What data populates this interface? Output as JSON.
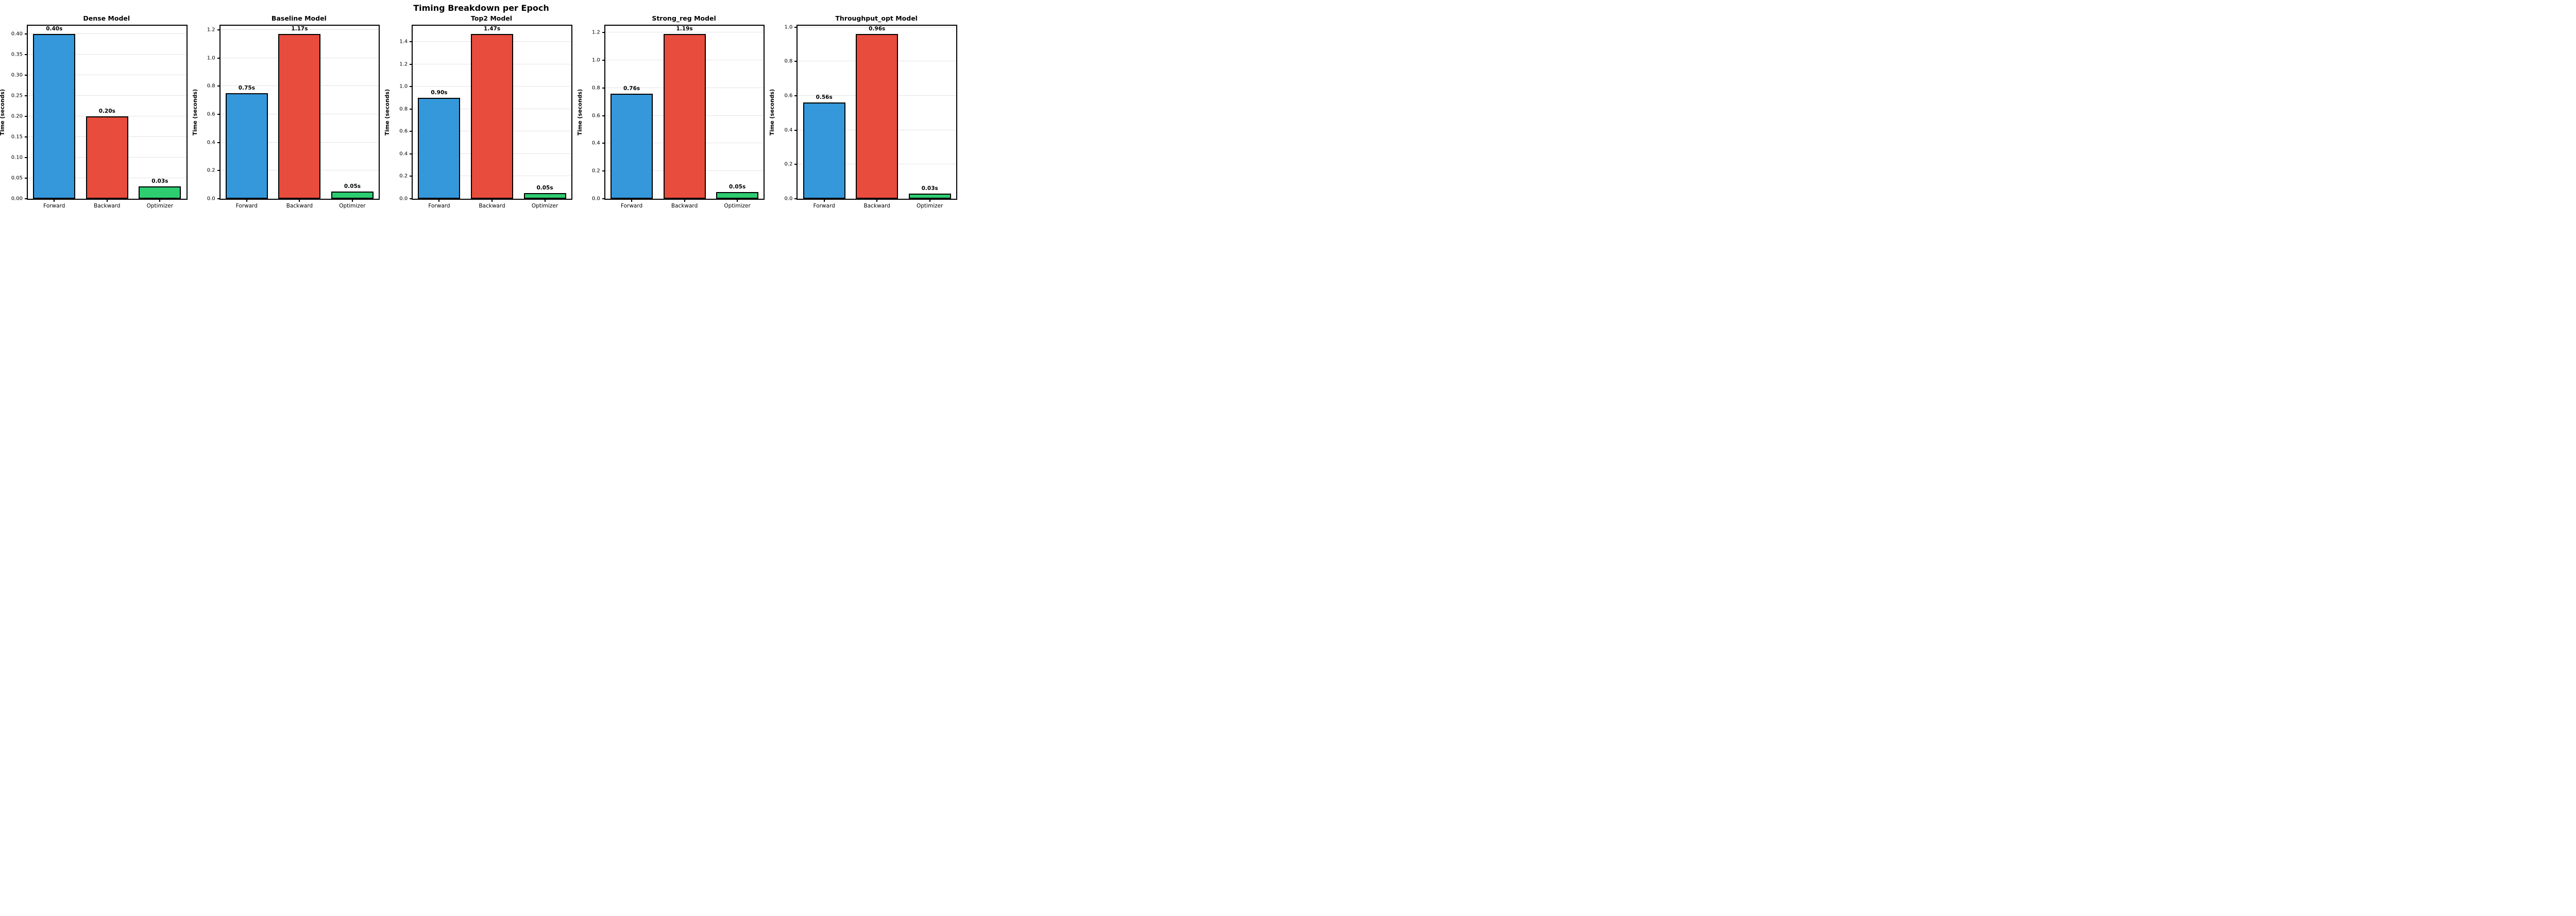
{
  "figure": {
    "title": "Timing Breakdown per Epoch",
    "ylabel": "Time (seconds)",
    "categories": [
      "Forward",
      "Backward",
      "Optimizer"
    ],
    "bar_colors": [
      "#3498db",
      "#e74c3c",
      "#2ecc71"
    ],
    "bar_edge_color": "#000000",
    "grid_color": "#e3e3e3",
    "background_color": "#ffffff"
  },
  "chart_data": [
    {
      "type": "bar",
      "title": "Dense Model",
      "categories": [
        "Forward",
        "Backward",
        "Optimizer"
      ],
      "values": [
        0.4,
        0.2,
        0.03
      ],
      "bar_labels": [
        "0.40s",
        "0.20s",
        "0.03s"
      ],
      "colors": [
        "#3498db",
        "#e74c3c",
        "#2ecc71"
      ],
      "xlabel": "",
      "ylabel": "Time (seconds)",
      "ylim": [
        0,
        0.42
      ],
      "yticks": [
        0.0,
        0.05,
        0.1,
        0.15,
        0.2,
        0.25,
        0.3,
        0.35,
        0.4
      ],
      "ytick_labels": [
        "0.00",
        "0.05",
        "0.10",
        "0.15",
        "0.20",
        "0.25",
        "0.30",
        "0.35",
        "0.40"
      ],
      "grid": true,
      "legend": false
    },
    {
      "type": "bar",
      "title": "Baseline Model",
      "categories": [
        "Forward",
        "Backward",
        "Optimizer"
      ],
      "values": [
        0.75,
        1.17,
        0.05
      ],
      "bar_labels": [
        "0.75s",
        "1.17s",
        "0.05s"
      ],
      "colors": [
        "#3498db",
        "#e74c3c",
        "#2ecc71"
      ],
      "xlabel": "",
      "ylabel": "Time (seconds)",
      "ylim": [
        0,
        1.23
      ],
      "yticks": [
        0.0,
        0.2,
        0.4,
        0.6,
        0.8,
        1.0,
        1.2
      ],
      "ytick_labels": [
        "0.0",
        "0.2",
        "0.4",
        "0.6",
        "0.8",
        "1.0",
        "1.2"
      ],
      "grid": true,
      "legend": false
    },
    {
      "type": "bar",
      "title": "Top2 Model",
      "categories": [
        "Forward",
        "Backward",
        "Optimizer"
      ],
      "values": [
        0.9,
        1.47,
        0.05
      ],
      "bar_labels": [
        "0.90s",
        "1.47s",
        "0.05s"
      ],
      "colors": [
        "#3498db",
        "#e74c3c",
        "#2ecc71"
      ],
      "xlabel": "",
      "ylabel": "Time (seconds)",
      "ylim": [
        0,
        1.544
      ],
      "yticks": [
        0.0,
        0.2,
        0.4,
        0.6,
        0.8,
        1.0,
        1.2,
        1.4
      ],
      "ytick_labels": [
        "0.0",
        "0.2",
        "0.4",
        "0.6",
        "0.8",
        "1.0",
        "1.2",
        "1.4"
      ],
      "grid": true,
      "legend": false
    },
    {
      "type": "bar",
      "title": "Strong_reg Model",
      "categories": [
        "Forward",
        "Backward",
        "Optimizer"
      ],
      "values": [
        0.76,
        1.19,
        0.05
      ],
      "bar_labels": [
        "0.76s",
        "1.19s",
        "0.05s"
      ],
      "colors": [
        "#3498db",
        "#e74c3c",
        "#2ecc71"
      ],
      "xlabel": "",
      "ylabel": "Time (seconds)",
      "ylim": [
        0,
        1.25
      ],
      "yticks": [
        0.0,
        0.2,
        0.4,
        0.6,
        0.8,
        1.0,
        1.2
      ],
      "ytick_labels": [
        "0.0",
        "0.2",
        "0.4",
        "0.6",
        "0.8",
        "1.0",
        "1.2"
      ],
      "grid": true,
      "legend": false
    },
    {
      "type": "bar",
      "title": "Throughput_opt Model",
      "categories": [
        "Forward",
        "Backward",
        "Optimizer"
      ],
      "values": [
        0.56,
        0.96,
        0.03
      ],
      "bar_labels": [
        "0.56s",
        "0.96s",
        "0.03s"
      ],
      "colors": [
        "#3498db",
        "#e74c3c",
        "#2ecc71"
      ],
      "xlabel": "",
      "ylabel": "Time (seconds)",
      "ylim": [
        0,
        1.008
      ],
      "yticks": [
        0.0,
        0.2,
        0.4,
        0.6,
        0.8,
        1.0
      ],
      "ytick_labels": [
        "0.0",
        "0.2",
        "0.4",
        "0.6",
        "0.8",
        "1.0"
      ],
      "grid": true,
      "legend": false
    }
  ]
}
